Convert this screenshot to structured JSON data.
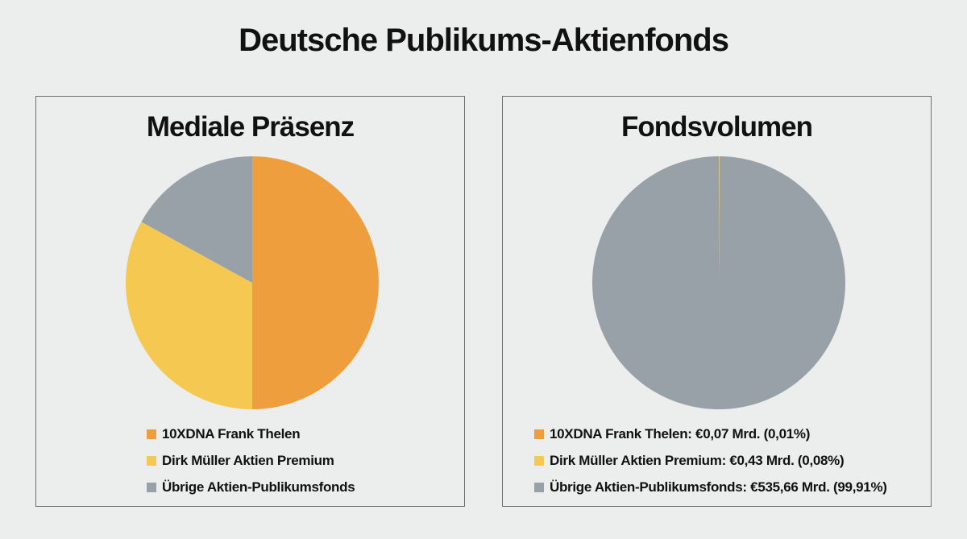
{
  "title": "Deutsche Publikums-Aktienfonds",
  "colors": {
    "frank_thelen": "#ef9e3d",
    "dirk_mueller": "#f5c851",
    "uebrige": "#98a0a8",
    "background": "#eceded"
  },
  "chart_data": [
    {
      "type": "pie",
      "title": "Mediale Präsenz",
      "legend": [
        "10XDNA Frank Thelen",
        "Dirk Müller Aktien Premium",
        "Übrige Aktien-Publikumsfonds"
      ],
      "values": [
        50,
        33,
        17
      ],
      "legend_position": "bottom"
    },
    {
      "type": "pie",
      "title": "Fondsvolumen",
      "legend": [
        "10XDNA Frank Thelen: €0,07 Mrd. (0,01%)",
        "Dirk Müller Aktien Premium: €0,43 Mrd. (0,08%)",
        "Übrige Aktien-Publikumsfonds: €535,66 Mrd. (99,91%)"
      ],
      "values": [
        0.07,
        0.43,
        535.66
      ],
      "legend_position": "bottom"
    }
  ]
}
